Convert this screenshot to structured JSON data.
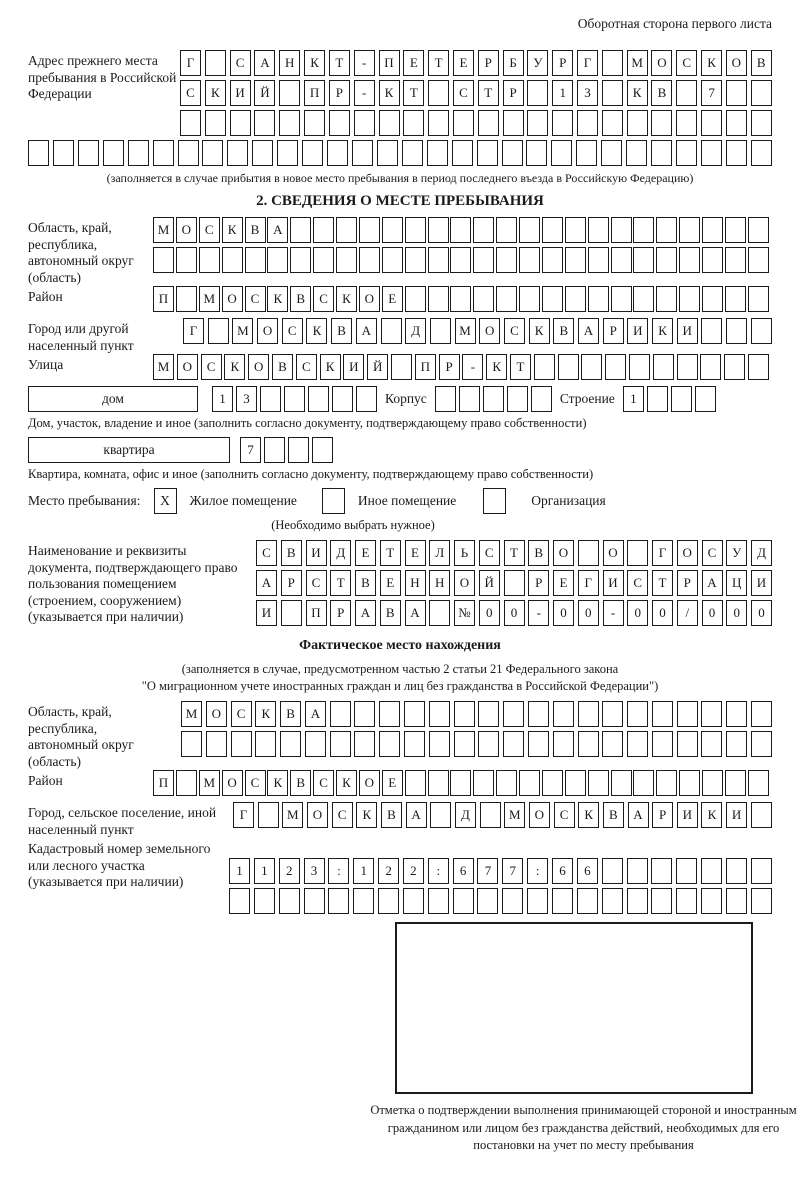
{
  "header": {
    "title": "Оборотная сторона первого листа"
  },
  "prev_address": {
    "label": "Адрес прежнего места пребывания в Российской Федерации",
    "row1": "Г САНКТ-ПЕТЕРБУРГ МОСКОВ",
    "row2": "СКИЙ ПР-КТ СТР 13 КВ 7  ",
    "row3": "                        ",
    "row4": "                              ",
    "note": "(заполняется в случае прибытия в новое место пребывания в период последнего въезда в Российскую Федерацию)"
  },
  "section2": {
    "title": "2. СВЕДЕНИЯ О МЕСТЕ ПРЕБЫВАНИЯ",
    "oblast": {
      "label": "Область, край, республика, автономный округ (область)",
      "row1": "МОСКВА                     ",
      "row2": "                           "
    },
    "raion": {
      "label": "Район",
      "row": "П МОСКВСКОЕ                "
    },
    "gorod": {
      "label": "Город или другой населенный пункт",
      "row": "Г МОСКВА Д МОСКВАРИКИ   "
    },
    "ulitsa": {
      "label": "Улица",
      "row": "МОСКОВСКИЙ ПР-КТ          "
    },
    "dom": {
      "box_label": "дом",
      "cells": "13     ",
      "korpus_label": "Корпус",
      "korpus_cells": "     ",
      "stroenie_label": "Строение",
      "stroenie_cells": "1   ",
      "note": "Дом, участок, владение и иное (заполнить согласно документу, подтверждающему право собственности)"
    },
    "kvartira": {
      "box_label": "квартира",
      "cells": "7   ",
      "note": "Квартира, комната, офис и иное (заполнить согласно документу, подтверждающему право собственности)"
    },
    "mesto": {
      "label": "Место пребывания:",
      "check1": "X",
      "opt1": "Жилое помещение",
      "check2": "",
      "opt2": "Иное помещение",
      "check3": "",
      "opt3": "Организация",
      "note": "(Необходимо выбрать нужное)"
    },
    "doc": {
      "label": "Наименование и реквизиты документа, подтверждающего право пользования помещением (строением, сооружением) (указывается при наличии)",
      "row1": "СВИДЕТЕЛЬСТВО О ГОСУД",
      "row2": "АРСТВЕННОЙ РЕГИСТРАЦИ",
      "row3": "И ПРАВА №00-00-00/000"
    }
  },
  "fact": {
    "title": "Фактическое место нахождения",
    "note1": "(заполняется в случае, предусмотренном частью 2 статьи 21 Федерального закона",
    "note2": "\"О миграционном учете иностранных граждан и лиц без гражданства в Российской Федерации\")",
    "oblast": {
      "label": "Область, край, республика, автономный округ (область)",
      "row1": "МОСКВА                  ",
      "row2": "                        "
    },
    "raion": {
      "label": "Район",
      "row": "П МОСКВСКОЕ                "
    },
    "gorod": {
      "label": "Город, сельское поселение, иной населенный пункт",
      "row": "Г МОСКВА Д МОСКВАРИКИ "
    },
    "kadastr": {
      "label": "Кадастровый номер земельного или лесного участка (указывается при наличии)",
      "row1": "1123:122:677:66       ",
      "row2": "                      "
    },
    "stamp_note": "Отметка о подтверждении выполнения принимающей стороной и иностранным гражданином или лицом без гражданства действий, необходимых для его постановки на учет по месту пребывания"
  }
}
